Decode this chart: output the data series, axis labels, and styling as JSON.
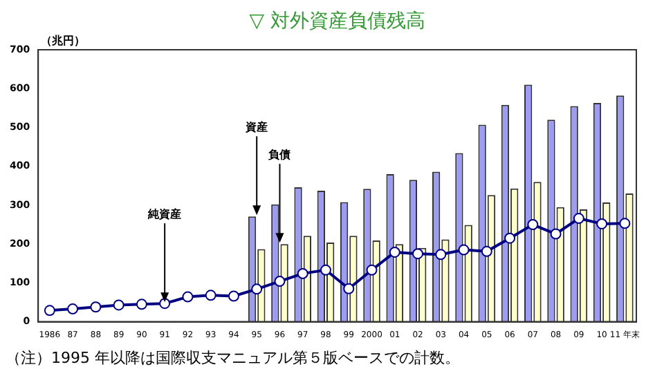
{
  "chart_data": {
    "type": "bar",
    "title": "▽ 対外資産負債残高",
    "ylabel": "（兆円）",
    "categories": [
      "1986",
      "87",
      "88",
      "89",
      "90",
      "91",
      "92",
      "93",
      "94",
      "95",
      "96",
      "97",
      "98",
      "99",
      "2000",
      "01",
      "02",
      "03",
      "04",
      "05",
      "06",
      "07",
      "08",
      "09",
      "10",
      "11 年末"
    ],
    "series": [
      {
        "color": "#9c9cf2",
        "values": [
          null,
          null,
          null,
          null,
          null,
          null,
          null,
          null,
          null,
          271,
          302,
          346,
          337,
          308,
          342,
          380,
          365,
          386,
          434,
          507,
          558,
          610,
          520,
          555,
          563,
          582
        ]
      },
      {
        "color": "#ffffcc",
        "values": [
          null,
          null,
          null,
          null,
          null,
          null,
          null,
          null,
          null,
          187,
          200,
          221,
          204,
          221,
          209,
          200,
          190,
          212,
          249,
          326,
          343,
          360,
          295,
          289,
          307,
          330
        ]
      },
      {
        "type": "line",
        "color": "#000080",
        "marker": "circle",
        "values": [
          29,
          33,
          38,
          43,
          45,
          47,
          64,
          68,
          66,
          84,
          104,
          124,
          133,
          85,
          133,
          179,
          175,
          173,
          185,
          181,
          215,
          250,
          226,
          266,
          252,
          253
        ]
      }
    ],
    "ylim": [
      0,
      700
    ],
    "yticks": [
      0,
      100,
      200,
      300,
      400,
      500,
      600,
      700
    ],
    "grid": false,
    "legend": false,
    "annotations": [
      {
        "text": "資産",
        "x": "95",
        "y": 271
      },
      {
        "text": "負債",
        "x": "96",
        "y": 200
      },
      {
        "text": "純資産",
        "x": "91",
        "y": 47
      },
      "（注）1995 年以降は国際収支マニュアル第５版ベースでの計数。"
    ]
  }
}
